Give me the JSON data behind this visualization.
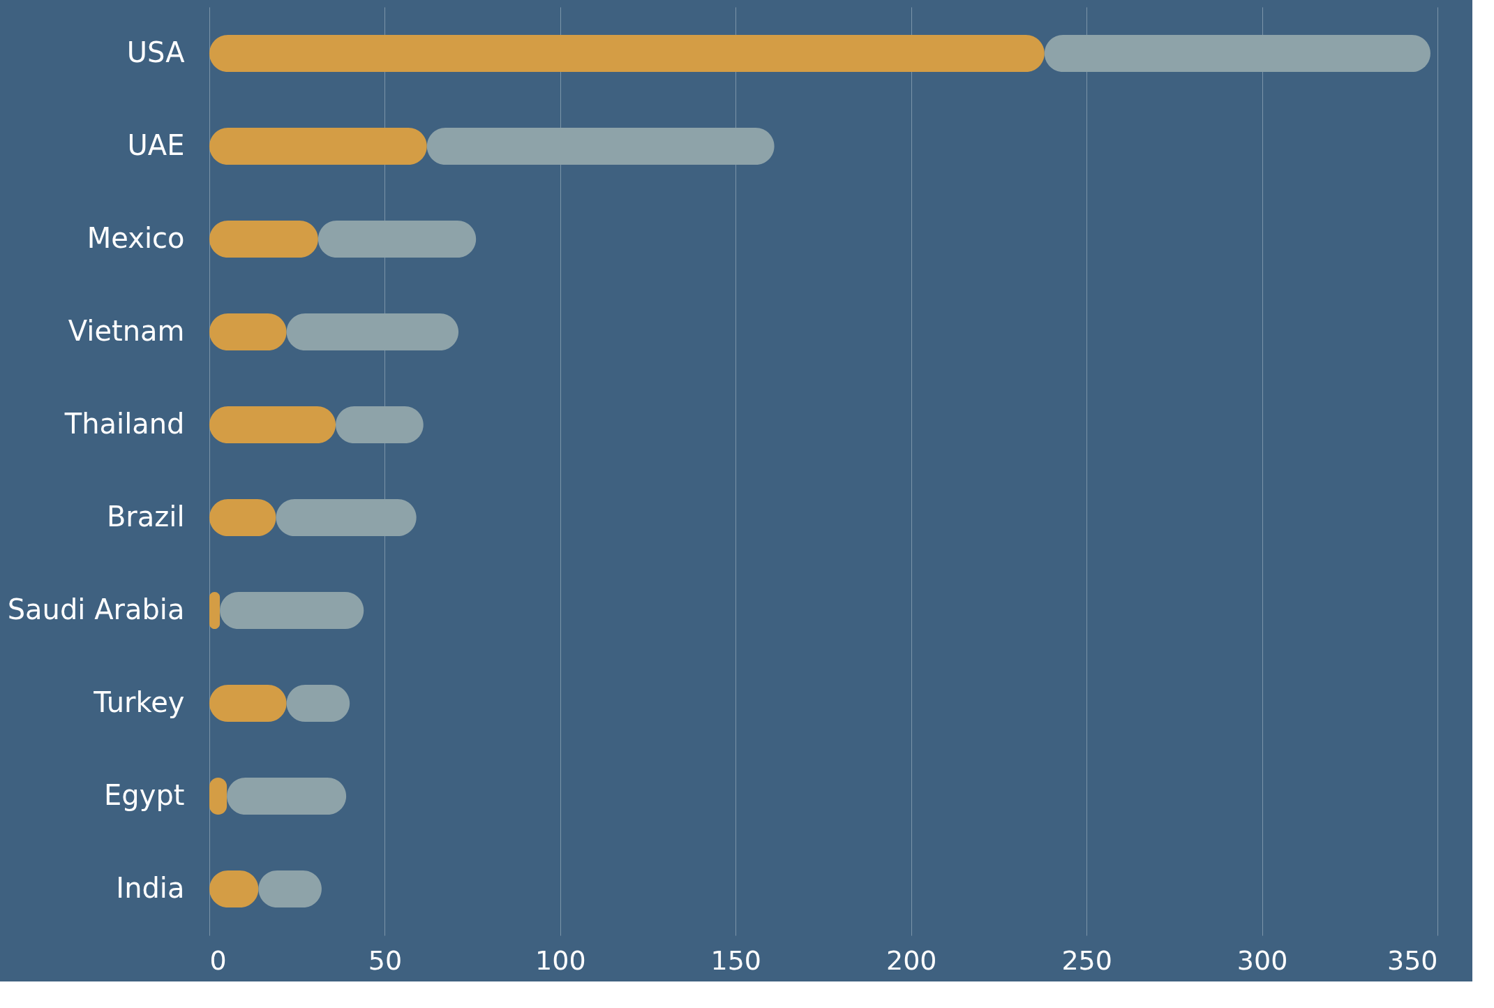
{
  "chart_data": {
    "type": "bar",
    "orientation": "horizontal",
    "stacked": true,
    "categories": [
      "USA",
      "UAE",
      "Mexico",
      "Vietnam",
      "Thailand",
      "Brazil",
      "Saudi Arabia",
      "Turkey",
      "Egypt",
      "India"
    ],
    "series": [
      {
        "color": "#d49d45",
        "values": [
          238,
          62,
          31,
          22,
          36,
          19,
          3,
          22,
          5,
          14
        ]
      },
      {
        "color": "#8ea3a9",
        "values": [
          110,
          99,
          45,
          49,
          25,
          40,
          41,
          18,
          34,
          18
        ]
      }
    ],
    "xlim": [
      0,
      350
    ],
    "xticks": [
      0,
      50,
      100,
      150,
      200,
      250,
      300,
      350
    ],
    "grid": "x",
    "legend": false
  }
}
